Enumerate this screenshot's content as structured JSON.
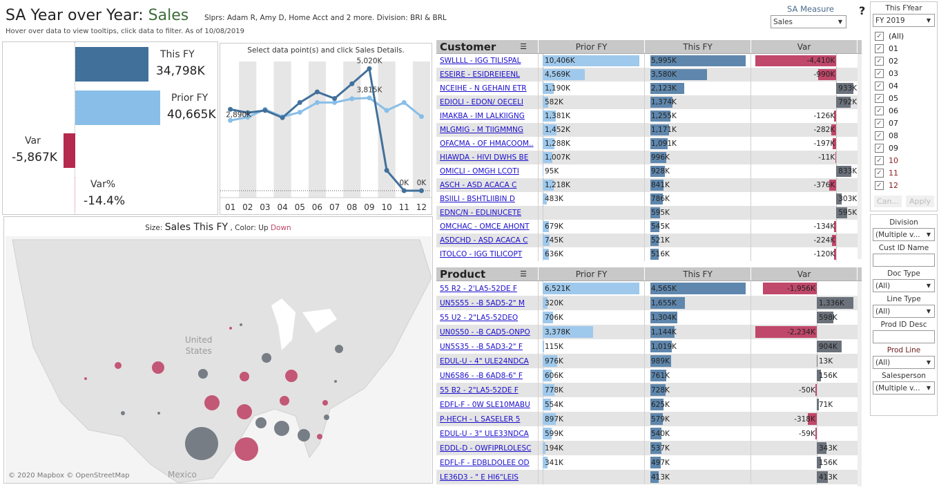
{
  "header": {
    "title_prefix": "SA Year over Year: ",
    "title_measure": "Sales",
    "subtitle": "Slprs: Adam R, Amy D, Home Acct and 2 more. Division: BRI & BRL",
    "note": "Hover over data to view tooltips, click data to filter. As of  10/08/2019"
  },
  "colors": {
    "this_fy": "#41709b",
    "prior_fy": "#88bee8",
    "down": "#c0486a",
    "up": "#6b727b",
    "table_this": "#5f87ad",
    "table_prior": "#9fc9ec"
  },
  "kpi": {
    "this_label": "This FY",
    "this_value": "34,798K",
    "prior_label": "Prior FY",
    "prior_value": "40,665K",
    "var_label": "Var",
    "var_value": "-5,867K",
    "varpct_label": "Var%",
    "varpct_value": "-14.4%"
  },
  "chart_data": {
    "type": "line",
    "title": "Select data point(s) and click Sales Details.",
    "categories": [
      "01",
      "02",
      "03",
      "04",
      "05",
      "06",
      "07",
      "08",
      "09",
      "10",
      "11",
      "12"
    ],
    "series": [
      {
        "key": "this_fy",
        "values": [
          3346,
          3207,
          3300,
          3003,
          3625,
          4062,
          3792,
          4397,
          5020,
          837,
          0,
          0
        ]
      },
      {
        "key": "prior_fy",
        "values": [
          2890,
          3020,
          3346,
          3040,
          3225,
          3625,
          3625,
          3783,
          3815,
          3300,
          3625,
          3050
        ]
      }
    ],
    "data_labels": [
      {
        "series": "prior_fy",
        "index": 0,
        "text": "2,890K"
      },
      {
        "series": "this_fy",
        "index": 8,
        "text": "5,020K"
      },
      {
        "series": "prior_fy",
        "index": 8,
        "text": "3,815K"
      },
      {
        "series": "this_fy",
        "index": 10,
        "text": "0K"
      },
      {
        "series": "this_fy",
        "index": 11,
        "text": "0K"
      }
    ],
    "ylim": [
      0,
      5200
    ],
    "grid": false
  },
  "map": {
    "size_label": "Size: ",
    "size_measure": "Sales This FY",
    "color_label": " , Color: ",
    "up": "Up",
    "down": "Down",
    "country": "United\nStates",
    "mexico": "Mexico",
    "attribution": "© 2020 Mapbox  © OpenStreetMap"
  },
  "customer": {
    "header": "Customer",
    "cols": [
      "Prior FY",
      "This FY",
      "Var"
    ],
    "rows": [
      [
        "SWLLLL - IGG TILISPAL",
        "10,406K",
        "5,995K",
        "-4,410K"
      ],
      [
        "ESEIRE - ESIDREIEENL",
        "4,569K",
        "3,580K",
        "-990K"
      ],
      [
        "NCEIHE - N GEHAIN ETR",
        "1,190K",
        "2,123K",
        "933K"
      ],
      [
        "EDIOLI - EDON/ OECELI",
        "582K",
        "1,374K",
        "792K"
      ],
      [
        "IMAKBA - IM LALKIIGNG",
        "1,381K",
        "1,255K",
        "-126K"
      ],
      [
        "MLGMIG - M TIIGMMNG",
        "1,452K",
        "1,171K",
        "-282K"
      ],
      [
        "OFACMA - OF HMACOOM..",
        "1,288K",
        "1,091K",
        "-197K"
      ],
      [
        "HIAWDA - HIVI DWHS BE",
        "1,007K",
        "996K",
        "-11K"
      ],
      [
        "OMICLI - OMGH LCOTI",
        "95K",
        "928K",
        "833K"
      ],
      [
        "ASCH - ASD ACACA C",
        "1,218K",
        "841K",
        "-376K"
      ],
      [
        "BSIILI - BSHTLIIBIN D",
        "483K",
        "786K",
        "303K"
      ],
      [
        "EDNC/N - EDLINUCETE",
        "",
        "595K",
        "595K"
      ],
      [
        "OMCHAC - OMCE AHONT",
        "679K",
        "545K",
        "-134K"
      ],
      [
        "ASDCHD - ASD ACACA C",
        "745K",
        "521K",
        "-224K"
      ],
      [
        "ITOLCO - IGG TILICOPT",
        "636K",
        "516K",
        "-120K"
      ]
    ]
  },
  "product": {
    "header": "Product",
    "cols": [
      "Prior FY",
      "This FY",
      "Var"
    ],
    "rows": [
      [
        "55 R2 - 2'LA5-52DE F",
        "6,521K",
        "4,565K",
        "-1,956K"
      ],
      [
        "UN5S55 - -B 5AD5-2\" M",
        "320K",
        "1,655K",
        "1,336K"
      ],
      [
        "55 U2 - 2\"LA5-52DEO",
        "706K",
        "1,304K",
        "598K"
      ],
      [
        "UN0S50 - -B CAD5-ONPO",
        "3,378K",
        "1,144K",
        "-2,234K"
      ],
      [
        "UN5S35 - -B 5AD3-2\" F",
        "115K",
        "1,019K",
        "904K"
      ],
      [
        "EDUL-U - 4\" ULE24NDCA",
        "976K",
        "989K",
        "13K"
      ],
      [
        "UN6S86 - -B 6AD8-6\" F",
        "606K",
        "761K",
        "156K"
      ],
      [
        "55 B2 - 2\"LA5-52DE F",
        "778K",
        "728K",
        "-50K"
      ],
      [
        "EDFL-F - 0W SLE10MABU",
        "554K",
        "625K",
        "71K"
      ],
      [
        "P-HECH - L SASELER 5",
        "897K",
        "579K",
        "-318K"
      ],
      [
        "EDUL-U - 3\" ULE33NDCA",
        "599K",
        "540K",
        "-59K"
      ],
      [
        "EDDL-D - OWFIPRLOLESC",
        "194K",
        "537K",
        "343K"
      ],
      [
        "EDFL-F - EDBLDOLEE OD",
        "341K",
        "497K",
        "156K"
      ],
      [
        "LE36D3 - \" E HI6\"LEIS",
        "",
        "413K",
        "413K"
      ]
    ]
  },
  "controls": {
    "sa_measure_label": "SA Measure",
    "sa_measure_value": "Sales",
    "help": "?",
    "fyear": {
      "label": "This FYear",
      "value": "FY 2019",
      "items": [
        "(All)",
        "01",
        "02",
        "03",
        "04",
        "05",
        "06",
        "07",
        "08",
        "09",
        "10",
        "11",
        "12"
      ],
      "checked": true,
      "cancel": "Can...",
      "apply": "Apply"
    },
    "filters": [
      {
        "label": "Division",
        "type": "select",
        "value": "(Multiple v..."
      },
      {
        "label": "Cust ID Name",
        "type": "input",
        "value": ""
      },
      {
        "label": "Doc Type",
        "type": "select",
        "value": "(All)"
      },
      {
        "label": "Line Type",
        "type": "select",
        "value": "(All)"
      },
      {
        "label": "Prod ID Desc",
        "type": "input",
        "value": ""
      },
      {
        "label": "Prod Line",
        "type": "select",
        "value": "(All)"
      },
      {
        "label": "Salesperson",
        "type": "select",
        "value": "(Multiple v..."
      }
    ]
  }
}
